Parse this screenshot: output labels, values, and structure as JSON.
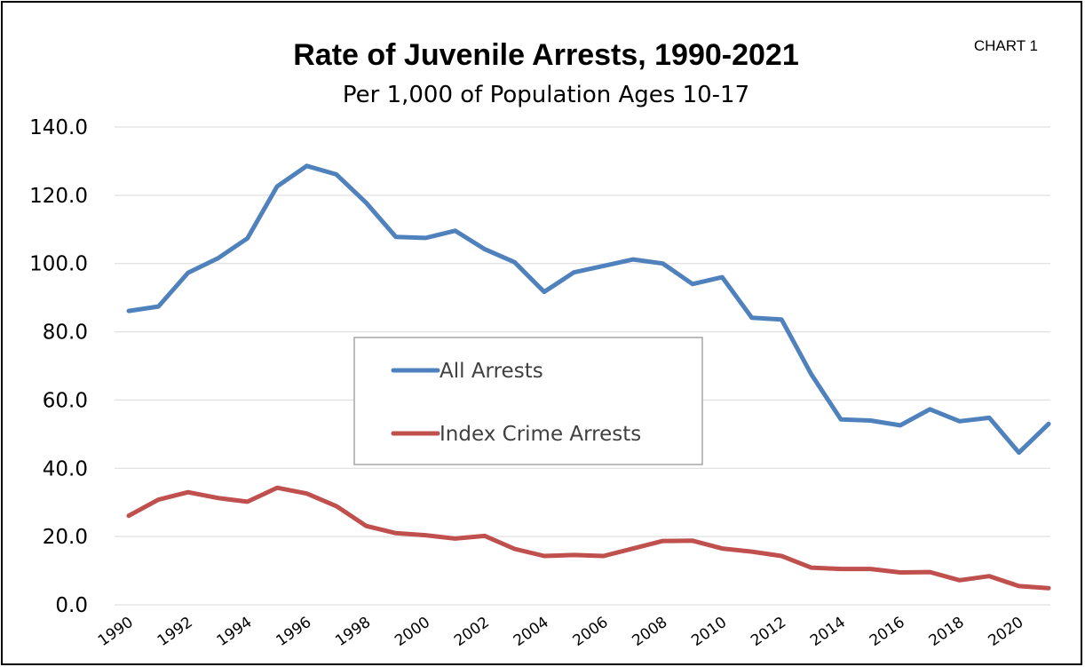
{
  "chart_tag": "CHART 1",
  "chart_data": {
    "type": "line",
    "title": "Rate of Juvenile Arrests, 1990-2021",
    "subtitle": "Per 1,000 of Population Ages 10-17",
    "ylim": [
      0,
      140
    ],
    "yticks": [
      "0.0",
      "20.0",
      "40.0",
      "60.0",
      "80.0",
      "100.0",
      "120.0",
      "140.0"
    ],
    "x": [
      1990,
      1991,
      1992,
      1993,
      1994,
      1995,
      1996,
      1997,
      1998,
      1999,
      2000,
      2001,
      2002,
      2003,
      2004,
      2005,
      2006,
      2007,
      2008,
      2009,
      2010,
      2011,
      2012,
      2013,
      2014,
      2015,
      2016,
      2017,
      2018,
      2019,
      2020,
      2021
    ],
    "xtick_labels": [
      "1990",
      "1992",
      "1994",
      "1996",
      "1998",
      "2000",
      "2002",
      "2004",
      "2006",
      "2008",
      "2010",
      "2012",
      "2014",
      "2016",
      "2018",
      "2020"
    ],
    "grid": true,
    "legend_position": "center-left",
    "series": [
      {
        "name": "All Arrests",
        "color": "#4f81bd",
        "values": [
          86.1,
          87.4,
          97.3,
          101.5,
          107.4,
          122.6,
          128.6,
          126.1,
          117.8,
          107.8,
          107.5,
          109.6,
          104.2,
          100.4,
          91.7,
          97.4,
          99.3,
          101.2,
          100.0,
          94.0,
          96.0,
          84.1,
          83.6,
          67.6,
          54.3,
          54.0,
          52.6,
          57.3,
          53.8,
          54.8,
          44.6,
          53.0
        ]
      },
      {
        "name": "Index Crime Arrests",
        "color": "#c0504d",
        "values": [
          26.1,
          30.8,
          33.0,
          31.3,
          30.2,
          34.3,
          32.6,
          28.9,
          23.1,
          21.0,
          20.4,
          19.4,
          20.2,
          16.4,
          14.3,
          14.6,
          14.3,
          16.5,
          18.7,
          18.8,
          16.5,
          15.6,
          14.3,
          10.9,
          10.5,
          10.5,
          9.5,
          9.6,
          7.2,
          8.4,
          5.5,
          4.9
        ]
      }
    ]
  }
}
